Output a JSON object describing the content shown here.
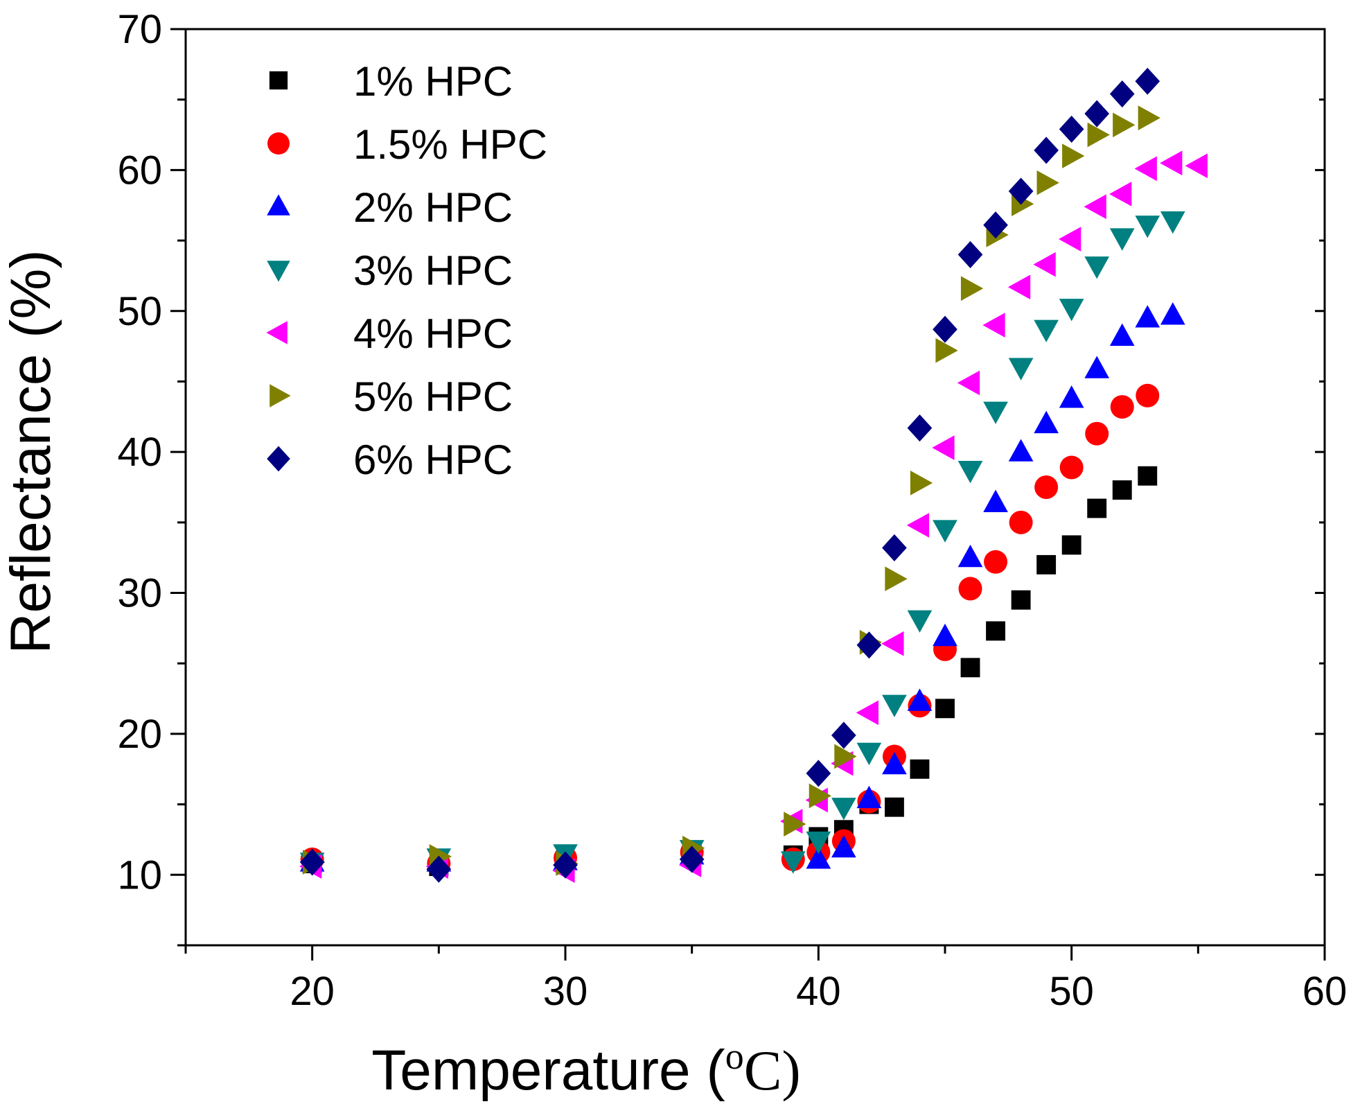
{
  "chart_data": {
    "type": "scatter",
    "title": "",
    "xlabel": "Temperature (",
    "xlabel_unit_sup": "o",
    "xlabel_unit": "C)",
    "ylabel": "Reflectance (%)",
    "xlim": [
      15,
      60
    ],
    "ylim": [
      5,
      70
    ],
    "xticks": [
      20,
      30,
      40,
      50,
      60
    ],
    "yticks": [
      10,
      20,
      30,
      40,
      50,
      60,
      70
    ],
    "grid": false,
    "legend_position": "top-left",
    "series": [
      {
        "name": "1% HPC",
        "marker": "square",
        "color": "#000000",
        "x": [
          20,
          25,
          30,
          35,
          39,
          40,
          41,
          42,
          43,
          44,
          45,
          46,
          47,
          48,
          49,
          50,
          51,
          52,
          53
        ],
        "y": [
          10.8,
          10.6,
          11.0,
          11.5,
          11.4,
          12.7,
          13.2,
          15.0,
          14.8,
          17.5,
          21.8,
          24.7,
          27.3,
          29.5,
          32.0,
          33.4,
          36.0,
          37.3,
          38.3
        ]
      },
      {
        "name": "1.5% HPC",
        "marker": "circle",
        "color": "#ff0000",
        "x": [
          20,
          25,
          30,
          35,
          39,
          40,
          41,
          42,
          43,
          44,
          45,
          46,
          47,
          48,
          49,
          50,
          51,
          52,
          53
        ],
        "y": [
          11.1,
          10.8,
          11.2,
          11.6,
          11.1,
          11.6,
          12.4,
          15.2,
          18.4,
          22.0,
          26.0,
          30.3,
          32.2,
          35.0,
          37.5,
          38.9,
          41.3,
          43.2,
          44.0
        ]
      },
      {
        "name": "2% HPC",
        "marker": "triangle-up",
        "color": "#0000ff",
        "x": [
          20,
          25,
          30,
          35,
          40,
          41,
          42,
          43,
          44,
          45,
          46,
          47,
          48,
          49,
          50,
          51,
          52,
          53,
          54
        ],
        "y": [
          10.9,
          10.9,
          11.0,
          11.4,
          11.1,
          11.9,
          15.4,
          17.8,
          22.3,
          26.9,
          32.5,
          36.4,
          40.0,
          42.0,
          43.8,
          45.9,
          48.2,
          49.5,
          49.7
        ]
      },
      {
        "name": "3% HPC",
        "marker": "triangle-down",
        "color": "#008080",
        "x": [
          20,
          25,
          30,
          35,
          39,
          40,
          41,
          42,
          43,
          44,
          45,
          46,
          47,
          48,
          49,
          50,
          51,
          52,
          53,
          54
        ],
        "y": [
          10.9,
          11.2,
          11.5,
          11.8,
          11.0,
          12.4,
          14.8,
          18.7,
          22.1,
          28.1,
          34.5,
          38.7,
          42.9,
          46.0,
          48.7,
          50.2,
          53.2,
          55.2,
          56.1,
          56.4
        ]
      },
      {
        "name": "4% HPC",
        "marker": "triangle-left",
        "color": "#ff00ff",
        "x": [
          20,
          25,
          30,
          35,
          39,
          40,
          41,
          42,
          43,
          44,
          45,
          46,
          47,
          48,
          49,
          50,
          51,
          52,
          53,
          54,
          55
        ],
        "y": [
          10.6,
          10.6,
          10.3,
          10.7,
          13.8,
          15.3,
          17.9,
          21.5,
          26.4,
          34.8,
          40.3,
          44.9,
          49.0,
          51.7,
          53.3,
          55.1,
          57.4,
          58.3,
          60.1,
          60.5,
          60.3
        ]
      },
      {
        "name": "5% HPC",
        "marker": "triangle-right",
        "color": "#808000",
        "x": [
          20,
          25,
          30,
          35,
          39,
          40,
          41,
          42,
          43,
          44,
          45,
          46,
          47,
          48,
          49,
          50,
          51,
          52,
          53
        ],
        "y": [
          10.9,
          11.3,
          10.8,
          11.9,
          13.6,
          15.6,
          18.4,
          26.5,
          31.0,
          37.8,
          47.2,
          51.6,
          55.4,
          57.6,
          59.1,
          61.0,
          62.5,
          63.2,
          63.7
        ]
      },
      {
        "name": "6% HPC",
        "marker": "diamond",
        "color": "#000080",
        "x": [
          20,
          25,
          30,
          35,
          40,
          41,
          42,
          43,
          44,
          45,
          46,
          47,
          48,
          49,
          50,
          51,
          52,
          53
        ],
        "y": [
          10.9,
          10.4,
          10.7,
          11.1,
          17.2,
          19.9,
          26.3,
          33.2,
          41.7,
          48.7,
          54.0,
          56.1,
          58.5,
          61.4,
          62.9,
          64.0,
          65.4,
          66.3
        ]
      }
    ]
  }
}
